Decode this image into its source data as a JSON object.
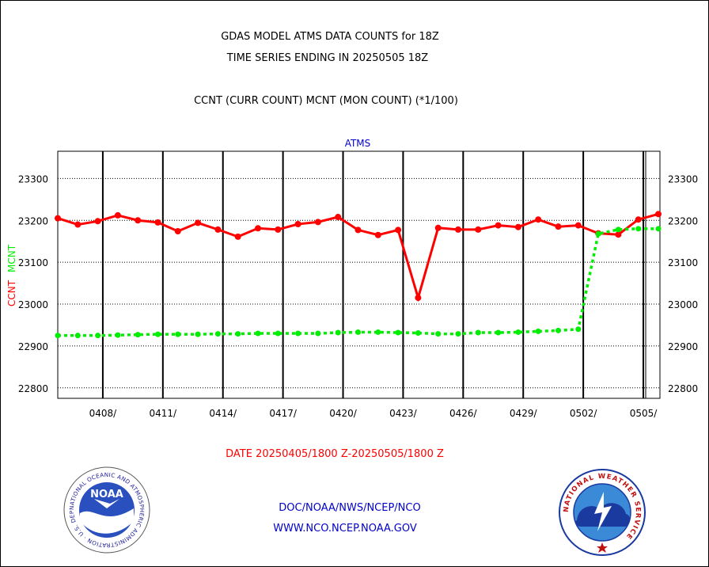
{
  "header": {
    "title_line1": "GDAS MODEL ATMS DATA COUNTS for 18Z",
    "title_line2": "TIME SERIES ENDING IN 20250505 18Z",
    "subtitle": "CCNT (CURR COUNT) MCNT (MON COUNT) (*1/100)"
  },
  "footer": {
    "date_range": "DATE 20250405/1800 Z-20250505/1800 Z",
    "agency": "DOC/NOAA/NWS/NCEP/NCO",
    "website": "WWW.NCO.NCEP.NOAA.GOV"
  },
  "logos": {
    "noaa": {
      "center_text": "NOAA",
      "ring_text": "NATIONAL OCEANIC AND ATMOSPHERIC ADMINISTRATION · U.S. DEPARTMENT OF COMMERCE"
    },
    "nws": {
      "ring_text": "NATIONAL WEATHER SERVICE"
    }
  },
  "colors": {
    "ccnt": "#ff0000",
    "mcnt": "#00ee00",
    "panel_title": "#0000cc",
    "footer_red": "#ff0000",
    "footer_blue": "#0000cc"
  },
  "chart_data": {
    "type": "line",
    "title": "ATMS",
    "ylabel_left_ccnt": "CCNT",
    "ylabel_left_mcnt": "MCNT",
    "x_tick_labels": [
      "0408/",
      "0411/",
      "0414/",
      "0417/",
      "0420/",
      "0423/",
      "0426/",
      "0429/",
      "0502/",
      "0505/"
    ],
    "ylim": [
      22775,
      23365
    ],
    "y_ticks": [
      22800,
      22900,
      23000,
      23100,
      23200,
      23300
    ],
    "grid": true,
    "x": [
      "0405",
      "0406",
      "0407",
      "0408",
      "0409",
      "0410",
      "0411",
      "0412",
      "0413",
      "0414",
      "0415",
      "0416",
      "0417",
      "0418",
      "0419",
      "0420",
      "0421",
      "0422",
      "0423",
      "0424",
      "0425",
      "0426",
      "0427",
      "0428",
      "0429",
      "0430",
      "0501",
      "0502",
      "0503",
      "0504",
      "0505"
    ],
    "series": [
      {
        "name": "CCNT",
        "color": "#ff0000",
        "style": "solid",
        "values": [
          23205,
          23190,
          23198,
          23212,
          23200,
          23195,
          23174,
          23194,
          23178,
          23161,
          23181,
          23178,
          23191,
          23196,
          23208,
          23177,
          23165,
          23177,
          23015,
          23182,
          23178,
          23178,
          23188,
          23184,
          23202,
          23185,
          23188,
          23169,
          23166,
          23202,
          23215
        ]
      },
      {
        "name": "MCNT",
        "color": "#00ee00",
        "style": "dotted",
        "values": [
          22925,
          22925,
          22925,
          22926,
          22927,
          22928,
          22928,
          22928,
          22929,
          22929,
          22930,
          22930,
          22930,
          22930,
          22932,
          22933,
          22933,
          22932,
          22931,
          22929,
          22929,
          22932,
          22932,
          22933,
          22935,
          22937,
          22940,
          23168,
          23178,
          23180,
          23180
        ]
      }
    ]
  }
}
